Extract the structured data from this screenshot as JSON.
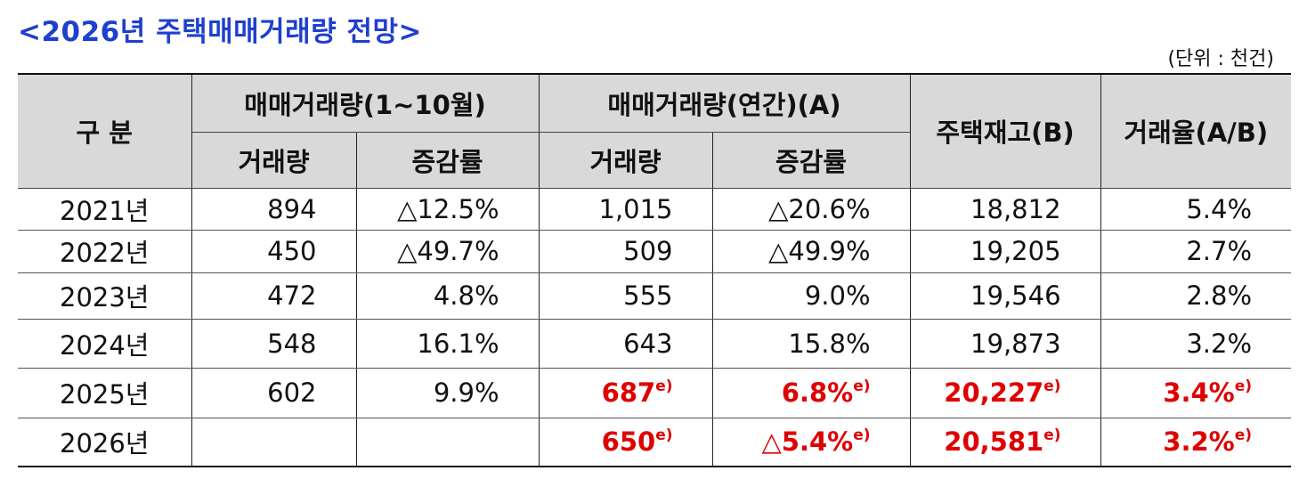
{
  "title": "<2026년 주택매매거래량 전망>",
  "unit": "(단위 : 천건)",
  "table": {
    "header": {
      "category": "구 분",
      "groups": [
        "매매거래량(1~10월)",
        "매매거래량(연간)(A)"
      ],
      "stock": "주택재고(B)",
      "ratio": "거래율(A/B)",
      "sub": [
        "거래량",
        "증감률",
        "거래량",
        "증감률"
      ]
    },
    "rows": [
      [
        "2021년",
        "894",
        "△12.5%",
        "1,015",
        "△20.6%",
        "18,812",
        "5.4%"
      ],
      [
        "2022년",
        "450",
        "△49.7%",
        "509",
        "△49.9%",
        "19,205",
        "2.7%"
      ],
      [
        "2023년",
        "472",
        "4.8%",
        "555",
        "9.0%",
        "19,546",
        "2.8%"
      ],
      [
        "2024년",
        "548",
        "16.1%",
        "643",
        "15.8%",
        "19,873",
        "3.2%"
      ],
      [
        "2025년",
        "602",
        "9.9%",
        {
          "text": "687",
          "note": "e)"
        },
        {
          "text": "6.8%",
          "note": "e)"
        },
        {
          "text": "20,227",
          "note": "e)"
        },
        {
          "text": "3.4%",
          "note": "e)"
        }
      ],
      [
        "2026년",
        null,
        null,
        {
          "text": "650",
          "note": "e)"
        },
        {
          "text": "△5.4%",
          "note": "e)"
        },
        {
          "text": "20,581",
          "note": "e)"
        },
        {
          "text": "3.2%",
          "note": "e)"
        }
      ]
    ]
  }
}
